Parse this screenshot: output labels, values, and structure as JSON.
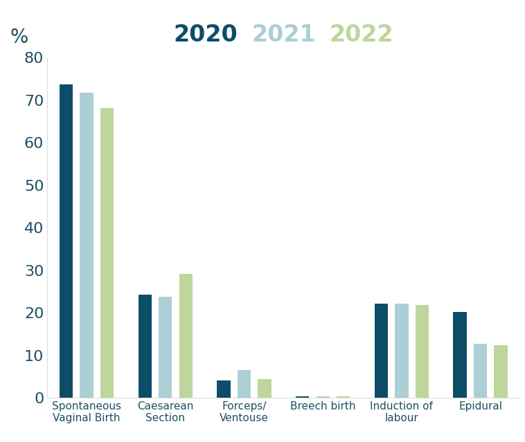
{
  "chart_data": {
    "type": "bar",
    "categories": [
      "Spontaneous Vaginal Birth",
      "Caesarean Section",
      "Forceps/ Ventouse",
      "Breech birth",
      "Induction of labour",
      "Epidural"
    ],
    "series": [
      {
        "name": "2020",
        "color": "#0e4d68",
        "values": [
          73.6,
          24.3,
          4.1,
          0.3,
          22.1,
          20.2
        ]
      },
      {
        "name": "2021",
        "color": "#abcfd4",
        "values": [
          71.7,
          23.8,
          6.6,
          0.3,
          22.1,
          12.7
        ]
      },
      {
        "name": "2022",
        "color": "#bdd69c",
        "values": [
          68.1,
          29.1,
          4.4,
          0.4,
          21.8,
          12.4
        ]
      }
    ],
    "y_label": "%",
    "ylim": [
      0,
      80
    ],
    "yticks": [
      0,
      10,
      20,
      30,
      40,
      50,
      60,
      70,
      80
    ],
    "grid": false,
    "legend": "upper center"
  }
}
